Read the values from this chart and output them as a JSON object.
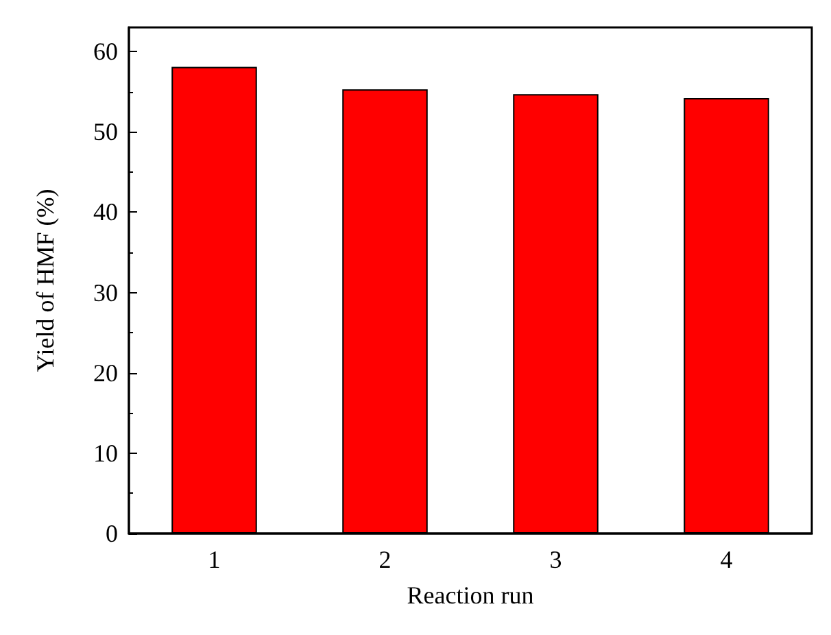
{
  "chart_data": {
    "type": "bar",
    "xlabel": "Reaction run",
    "ylabel": "Yield of HMF (%)",
    "categories": [
      "1",
      "2",
      "3",
      "4"
    ],
    "values": [
      58.1,
      55.3,
      54.7,
      54.2
    ],
    "color": "#ff0000",
    "ylim": [
      0,
      63
    ],
    "yticks": [
      0,
      10,
      20,
      30,
      40,
      50,
      60
    ],
    "grid": false
  }
}
